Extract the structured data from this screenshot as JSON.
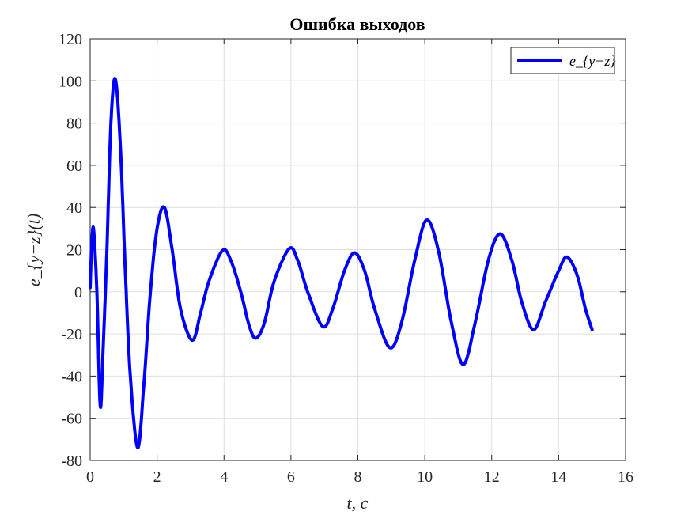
{
  "chart_data": {
    "type": "line",
    "title": "Ошибка выходов",
    "xlabel": "t, c",
    "ylabel": "e_{y−z}(t)",
    "xlim": [
      0,
      16
    ],
    "ylim": [
      -80,
      120
    ],
    "xticks": [
      "0",
      "2",
      "4",
      "6",
      "8",
      "10",
      "12",
      "14",
      "16"
    ],
    "yticks": [
      "-80",
      "-60",
      "-40",
      "-20",
      "0",
      "20",
      "40",
      "60",
      "80",
      "100",
      "120"
    ],
    "grid": true,
    "legend_position": "top-right",
    "series": [
      {
        "name": "e_{y−z}",
        "color": "#0000ff",
        "points": [
          [
            0.0,
            2
          ],
          [
            0.04,
            20
          ],
          [
            0.1,
            30
          ],
          [
            0.2,
            0
          ],
          [
            0.3,
            -54
          ],
          [
            0.38,
            -30
          ],
          [
            0.5,
            20
          ],
          [
            0.62,
            80
          ],
          [
            0.75,
            101
          ],
          [
            0.9,
            70
          ],
          [
            1.05,
            10
          ],
          [
            1.2,
            -40
          ],
          [
            1.42,
            -74
          ],
          [
            1.6,
            -45
          ],
          [
            1.8,
            0
          ],
          [
            2.0,
            30
          ],
          [
            2.22,
            40
          ],
          [
            2.45,
            20
          ],
          [
            2.7,
            -8
          ],
          [
            3.05,
            -23
          ],
          [
            3.3,
            -10
          ],
          [
            3.55,
            5
          ],
          [
            3.95,
            19.5
          ],
          [
            4.2,
            15
          ],
          [
            4.5,
            0
          ],
          [
            4.75,
            -16
          ],
          [
            4.95,
            -22
          ],
          [
            5.2,
            -15
          ],
          [
            5.5,
            5
          ],
          [
            5.95,
            20.5
          ],
          [
            6.2,
            15
          ],
          [
            6.5,
            0
          ],
          [
            6.95,
            -16.5
          ],
          [
            7.25,
            -8
          ],
          [
            7.6,
            10
          ],
          [
            7.9,
            18.5
          ],
          [
            8.2,
            10
          ],
          [
            8.5,
            -8
          ],
          [
            8.95,
            -26.5
          ],
          [
            9.3,
            -15
          ],
          [
            9.7,
            15
          ],
          [
            10.05,
            34
          ],
          [
            10.4,
            20
          ],
          [
            10.8,
            -15
          ],
          [
            11.15,
            -34.5
          ],
          [
            11.5,
            -15
          ],
          [
            11.9,
            15
          ],
          [
            12.25,
            27.5
          ],
          [
            12.6,
            15
          ],
          [
            12.9,
            -5
          ],
          [
            13.25,
            -18
          ],
          [
            13.6,
            -5
          ],
          [
            14.0,
            10
          ],
          [
            14.25,
            16.5
          ],
          [
            14.55,
            8
          ],
          [
            14.8,
            -8
          ],
          [
            15.0,
            -18
          ]
        ]
      }
    ]
  }
}
